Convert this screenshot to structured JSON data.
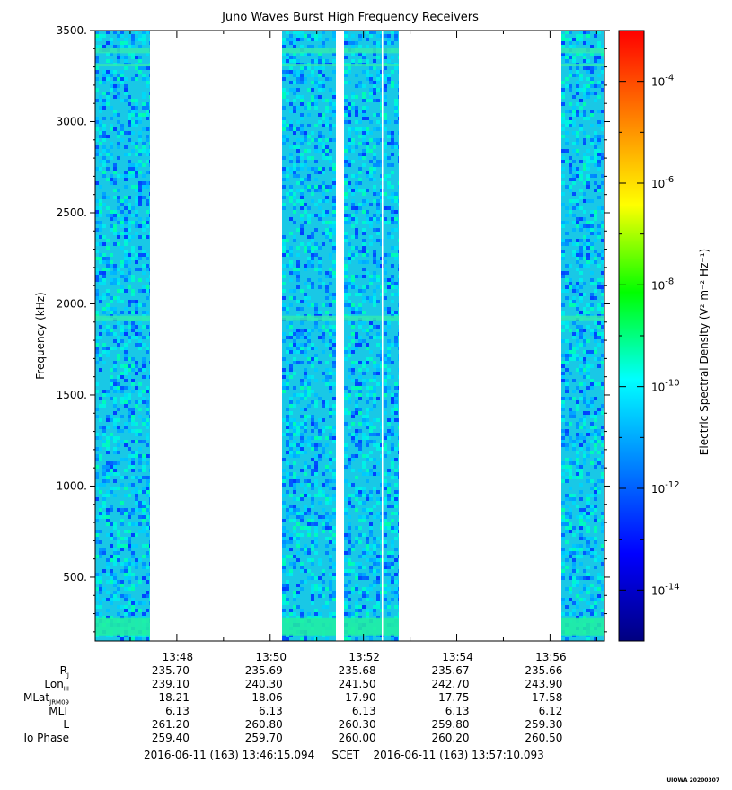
{
  "title": "Juno Waves Burst High Frequency Receivers",
  "chart_data": {
    "type": "heatmap",
    "title": "Juno Waves Burst High Frequency Receivers",
    "xlabel": "",
    "ylabel": "Frequency (kHz)",
    "ylim": [
      150,
      3500
    ],
    "x_ticks": [
      "13:48",
      "13:50",
      "13:52",
      "13:54",
      "13:56"
    ],
    "y_ticks": [
      "500.",
      "1000.",
      "1500.",
      "2000.",
      "2500.",
      "3000.",
      "3500."
    ],
    "y_tick_values": [
      500,
      1000,
      1500,
      2000,
      2500,
      3000,
      3500
    ],
    "colorbar": {
      "label": "Electric Spectral Density (V² m⁻² Hz⁻¹)",
      "scale": "log",
      "range": [
        1e-15,
        0.001
      ],
      "ticks": [
        "10-4",
        "10-6",
        "10-8",
        "10-10",
        "10-12",
        "10-14"
      ],
      "tick_exponents": [
        -4,
        -6,
        -8,
        -10,
        -12,
        -14
      ],
      "colors": [
        "#000080",
        "#0000ff",
        "#0080ff",
        "#00ffff",
        "#00ff00",
        "#ffff00",
        "#ff8000",
        "#ff0000"
      ]
    },
    "data_segments": [
      {
        "start": "13:46:15",
        "end": "13:47:25"
      },
      {
        "start": "13:50:15",
        "end": "13:51:25"
      },
      {
        "start": "13:51:35",
        "end": "13:52:45"
      },
      {
        "start": "13:56:15",
        "end": "13:57:10"
      }
    ],
    "enhanced_bands_khz": [
      230,
      1920,
      3390,
      3310
    ]
  },
  "ephemeris": {
    "labels": [
      {
        "main": "R",
        "sub": "J"
      },
      {
        "main": "Lon",
        "sub": "III"
      },
      {
        "main": "MLat",
        "sub": "JRM09"
      },
      {
        "main": "MLT",
        "sub": ""
      },
      {
        "main": "L",
        "sub": ""
      },
      {
        "main": "Io Phase",
        "sub": ""
      }
    ],
    "rows": [
      [
        "235.70",
        "235.69",
        "235.68",
        "235.67",
        "235.66"
      ],
      [
        "239.10",
        "240.30",
        "241.50",
        "242.70",
        "243.90"
      ],
      [
        "18.21",
        "18.06",
        "17.90",
        "17.75",
        "17.58"
      ],
      [
        "6.13",
        "6.13",
        "6.13",
        "6.13",
        "6.12"
      ],
      [
        "261.20",
        "260.80",
        "260.30",
        "259.80",
        "259.30"
      ],
      [
        "259.40",
        "259.70",
        "260.00",
        "260.20",
        "260.50"
      ]
    ]
  },
  "footer": {
    "start": "2016-06-11 (163) 13:46:15.094",
    "mid": "SCET",
    "end": "2016-06-11 (163) 13:57:10.093"
  },
  "corner_tag": "UIOWA 20200307"
}
